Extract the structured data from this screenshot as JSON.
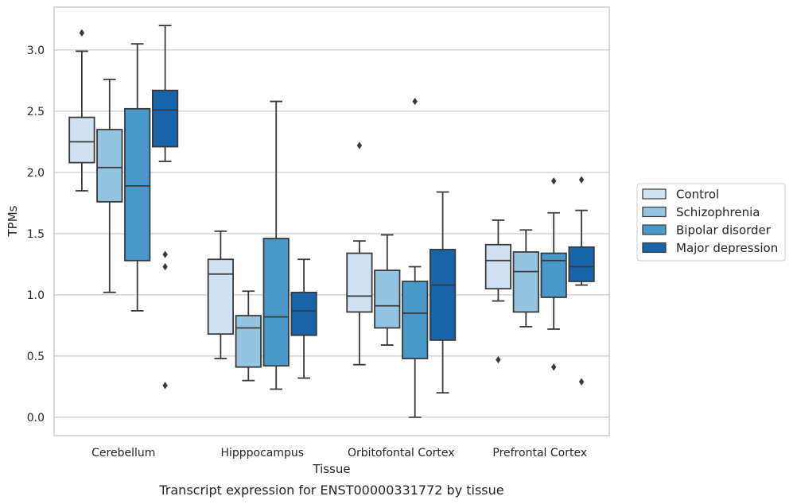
{
  "caption": "Transcript expression for ENST00000331772 by tissue",
  "chart_data": {
    "type": "box",
    "xlabel": "Tissue",
    "ylabel": "TPMs",
    "ylim": [
      -0.15,
      3.35
    ],
    "yticks": [
      0.0,
      0.5,
      1.0,
      1.5,
      2.0,
      2.5,
      3.0
    ],
    "ytick_labels": [
      "0.0",
      "0.5",
      "1.0",
      "1.5",
      "2.0",
      "2.5",
      "3.0"
    ],
    "grid": "horizontal",
    "legend_position": "right",
    "categories": [
      "Cerebellum",
      "Hipppocampus",
      "Orbitofontal Cortex",
      "Prefrontal Cortex"
    ],
    "series": [
      {
        "name": "Control",
        "color": "#d0e1f2",
        "boxes": [
          {
            "whisker_low": 1.85,
            "q1": 2.08,
            "median": 2.25,
            "q3": 2.45,
            "whisker_high": 2.99,
            "outliers": [
              3.14
            ]
          },
          {
            "whisker_low": 0.48,
            "q1": 0.68,
            "median": 1.17,
            "q3": 1.29,
            "whisker_high": 1.52,
            "outliers": []
          },
          {
            "whisker_low": 0.43,
            "q1": 0.86,
            "median": 0.99,
            "q3": 1.34,
            "whisker_high": 1.44,
            "outliers": [
              2.22
            ]
          },
          {
            "whisker_low": 0.95,
            "q1": 1.05,
            "median": 1.28,
            "q3": 1.41,
            "whisker_high": 1.61,
            "outliers": [
              0.47
            ]
          }
        ]
      },
      {
        "name": "Schizophrenia",
        "color": "#94c4df",
        "boxes": [
          {
            "whisker_low": 1.02,
            "q1": 1.76,
            "median": 2.04,
            "q3": 2.35,
            "whisker_high": 2.76,
            "outliers": []
          },
          {
            "whisker_low": 0.3,
            "q1": 0.41,
            "median": 0.73,
            "q3": 0.83,
            "whisker_high": 1.03,
            "outliers": []
          },
          {
            "whisker_low": 0.59,
            "q1": 0.73,
            "median": 0.91,
            "q3": 1.2,
            "whisker_high": 1.49,
            "outliers": []
          },
          {
            "whisker_low": 0.74,
            "q1": 0.86,
            "median": 1.19,
            "q3": 1.35,
            "whisker_high": 1.53,
            "outliers": []
          }
        ]
      },
      {
        "name": "Bipolar disorder",
        "color": "#4a98c9",
        "boxes": [
          {
            "whisker_low": 0.87,
            "q1": 1.28,
            "median": 1.89,
            "q3": 2.52,
            "whisker_high": 3.05,
            "outliers": []
          },
          {
            "whisker_low": 0.23,
            "q1": 0.42,
            "median": 0.82,
            "q3": 1.46,
            "whisker_high": 2.58,
            "outliers": []
          },
          {
            "whisker_low": 0.0,
            "q1": 0.48,
            "median": 0.85,
            "q3": 1.11,
            "whisker_high": 1.23,
            "outliers": [
              2.58
            ]
          },
          {
            "whisker_low": 0.72,
            "q1": 0.98,
            "median": 1.28,
            "q3": 1.34,
            "whisker_high": 1.67,
            "outliers": [
              0.41,
              1.93
            ]
          }
        ]
      },
      {
        "name": "Major depression",
        "color": "#1764ab",
        "boxes": [
          {
            "whisker_low": 2.09,
            "q1": 2.21,
            "median": 2.51,
            "q3": 2.67,
            "whisker_high": 3.2,
            "outliers": [
              1.33,
              1.23,
              0.26
            ]
          },
          {
            "whisker_low": 0.32,
            "q1": 0.67,
            "median": 0.87,
            "q3": 1.02,
            "whisker_high": 1.29,
            "outliers": []
          },
          {
            "whisker_low": 0.2,
            "q1": 0.63,
            "median": 1.08,
            "q3": 1.37,
            "whisker_high": 1.84,
            "outliers": []
          },
          {
            "whisker_low": 1.08,
            "q1": 1.11,
            "median": 1.23,
            "q3": 1.39,
            "whisker_high": 1.69,
            "outliers": [
              0.29,
              1.94
            ]
          }
        ]
      }
    ]
  }
}
